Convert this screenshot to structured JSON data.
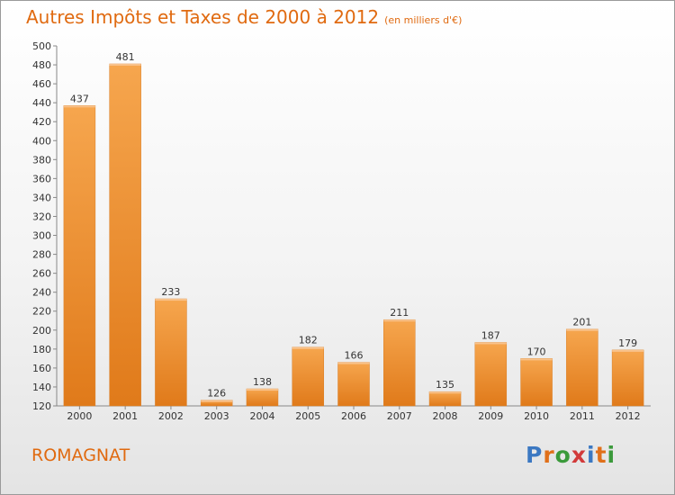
{
  "header": {
    "title": "Autres Impôts et Taxes de 2000 à 2012",
    "unit": "(en milliers d'€)"
  },
  "footer": {
    "place": "ROMAGNAT",
    "logo_text": "Proxiti",
    "logo_colors": [
      "#3b78c2",
      "#e0701a",
      "#3b9a3b",
      "#d23a3a",
      "#3b78c2",
      "#e0701a",
      "#3b9a3b"
    ]
  },
  "colors": {
    "bar_top": "#f6a64e",
    "bar_bottom": "#e07a1a",
    "accent": "#e06a10",
    "grid": "#cccccc"
  },
  "chart_data": {
    "type": "bar",
    "title": "Autres Impôts et Taxes de 2000 à 2012",
    "subtitle": "(en milliers d'€)",
    "xlabel": "",
    "ylabel": "",
    "categories": [
      "2000",
      "2001",
      "2002",
      "2003",
      "2004",
      "2005",
      "2006",
      "2007",
      "2008",
      "2009",
      "2010",
      "2011",
      "2012"
    ],
    "values": [
      437,
      481,
      233,
      126,
      138,
      182,
      166,
      211,
      135,
      187,
      170,
      201,
      179
    ],
    "ylim": [
      120,
      500
    ],
    "yticks": [
      120,
      140,
      160,
      180,
      200,
      220,
      240,
      260,
      280,
      300,
      320,
      340,
      360,
      380,
      400,
      420,
      440,
      460,
      480,
      500
    ],
    "grid": false
  }
}
